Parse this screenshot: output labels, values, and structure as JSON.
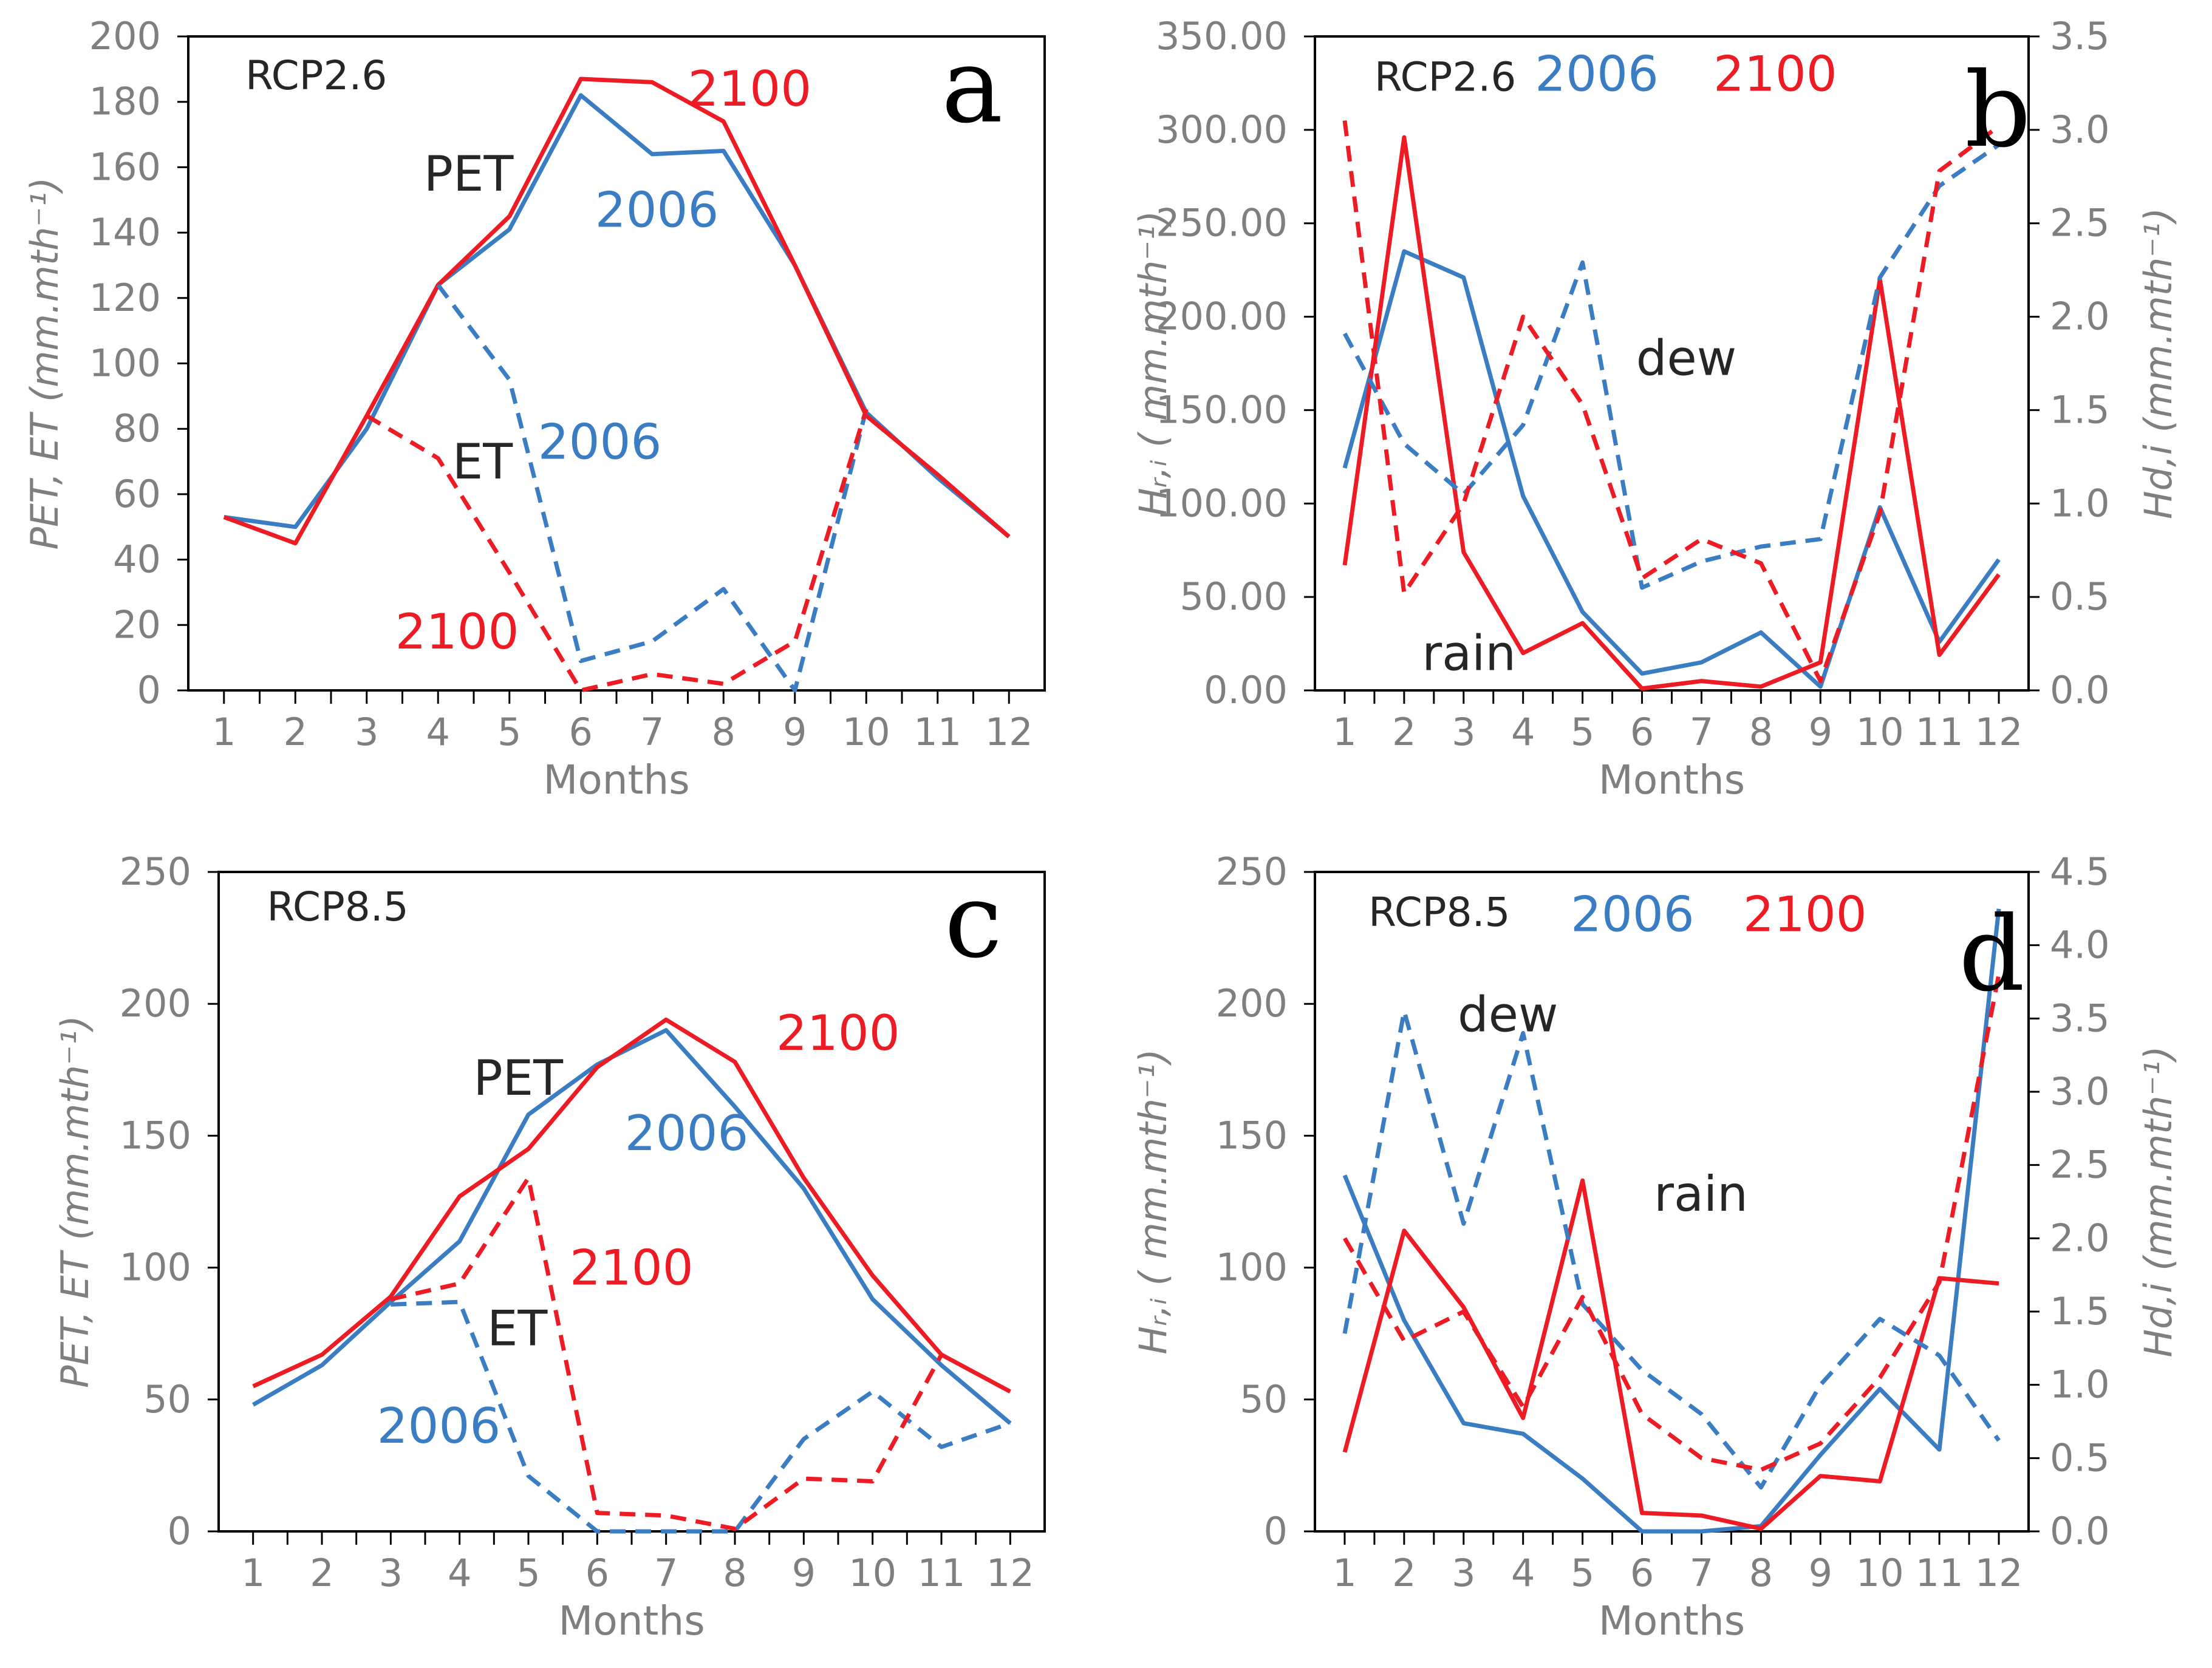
{
  "colors": {
    "blue": "#3a7dc2",
    "red": "#ed1c24",
    "black": "#262626",
    "gray": "#7f7f7f"
  },
  "chart_data": [
    {
      "id": "a",
      "type": "line",
      "panel_letter": "a",
      "xlabel": "Months",
      "ylabel": "PET, ET (mm.mth⁻¹)",
      "x": [
        1,
        2,
        3,
        4,
        5,
        6,
        7,
        8,
        9,
        10,
        11,
        12
      ],
      "xlim": [
        0.5,
        12.5
      ],
      "ylim": [
        0,
        200
      ],
      "yticks": [
        0,
        20,
        40,
        60,
        80,
        100,
        120,
        140,
        160,
        180,
        200
      ],
      "ytick_labels": [
        "0",
        "20",
        "40",
        "60",
        "80",
        "100",
        "120",
        "140",
        "160",
        "180",
        "200"
      ],
      "series": [
        {
          "name": "PET 2006",
          "axis": "left",
          "color": "blue",
          "dash": false,
          "values": [
            53,
            50,
            80,
            124,
            141,
            182,
            164,
            165,
            130,
            85,
            65,
            47
          ]
        },
        {
          "name": "PET 2100",
          "axis": "left",
          "color": "red",
          "dash": false,
          "values": [
            53,
            45,
            84,
            124,
            145,
            187,
            186,
            174,
            130,
            84,
            66,
            47
          ]
        },
        {
          "name": "ET 2006",
          "axis": "left",
          "color": "blue",
          "dash": true,
          "values": [
            null,
            null,
            null,
            124,
            95,
            9,
            15,
            31,
            0,
            86,
            null,
            null
          ]
        },
        {
          "name": "ET 2100",
          "axis": "left",
          "color": "red",
          "dash": true,
          "values": [
            null,
            null,
            84,
            71,
            36,
            0,
            5,
            2,
            15,
            86,
            null,
            null
          ]
        }
      ],
      "annotations": [
        {
          "text": "RCP2.6",
          "color": "black",
          "x": 1.3,
          "y": 189
        },
        {
          "text": "2100",
          "color": "red",
          "x": 7.5,
          "y": 184
        },
        {
          "text": "PET",
          "color": "black",
          "x": 3.8,
          "y": 158
        },
        {
          "text": "2006",
          "color": "blue",
          "x": 6.2,
          "y": 147
        },
        {
          "text": "ET",
          "color": "black",
          "x": 4.2,
          "y": 70
        },
        {
          "text": "2006",
          "color": "blue",
          "x": 5.4,
          "y": 76
        },
        {
          "text": "2100",
          "color": "red",
          "x": 3.4,
          "y": 18
        }
      ]
    },
    {
      "id": "b",
      "type": "line",
      "panel_letter": "b",
      "xlabel": "Months",
      "ylabel": "Hᵣ,ᵢ ( mm.mth⁻¹)",
      "ylabel_right": "Hd,i (mm.mth⁻¹)",
      "x": [
        1,
        2,
        3,
        4,
        5,
        6,
        7,
        8,
        9,
        10,
        11,
        12
      ],
      "xlim": [
        0.5,
        12.5
      ],
      "ylim": [
        0,
        350
      ],
      "ylim_right": [
        0,
        3.5
      ],
      "yticks": [
        0,
        50,
        100,
        150,
        200,
        250,
        300,
        350
      ],
      "ytick_labels": [
        "0.00",
        "50.00",
        "100.00",
        "150.00",
        "200.00",
        "250.00",
        "300.00",
        "350.00"
      ],
      "yticks_right": [
        0,
        0.5,
        1,
        1.5,
        2,
        2.5,
        3,
        3.5
      ],
      "ytick_labels_right": [
        "0.0",
        "0.5",
        "1.0",
        "1.5",
        "2.0",
        "2.5",
        "3.0",
        "3.5"
      ],
      "series": [
        {
          "name": "rain 2006",
          "axis": "left",
          "color": "blue",
          "dash": false,
          "values": [
            119,
            235,
            221,
            104,
            42,
            9,
            15,
            31,
            2,
            98,
            26,
            70
          ]
        },
        {
          "name": "rain 2100",
          "axis": "left",
          "color": "red",
          "dash": false,
          "values": [
            67,
            296,
            74,
            20,
            36,
            1,
            5,
            2,
            15,
            220,
            19,
            62
          ]
        },
        {
          "name": "dew 2006",
          "axis": "right",
          "color": "blue",
          "dash": true,
          "values": [
            1.91,
            1.32,
            1.05,
            1.42,
            2.29,
            0.55,
            0.69,
            0.77,
            0.81,
            2.21,
            2.7,
            2.92
          ]
        },
        {
          "name": "dew 2100",
          "axis": "right",
          "color": "red",
          "dash": true,
          "values": [
            3.05,
            0.52,
            1.0,
            2.0,
            1.53,
            0.6,
            0.81,
            0.68,
            0.05,
            0.95,
            2.78,
            3.02
          ]
        }
      ],
      "annotations": [
        {
          "text": "RCP2.6",
          "color": "black",
          "x": 1.5,
          "y": 330
        },
        {
          "text": "2006",
          "color": "blue",
          "x": 4.2,
          "y": 330
        },
        {
          "text": "2100",
          "color": "red",
          "x": 7.2,
          "y": 330
        },
        {
          "text": "dew",
          "color": "black",
          "x": 5.9,
          "y": 178
        },
        {
          "text": "rain",
          "color": "black",
          "x": 2.3,
          "y": 20
        }
      ]
    },
    {
      "id": "c",
      "type": "line",
      "panel_letter": "c",
      "xlabel": "Months",
      "ylabel": "PET, ET (mm.mth⁻¹)",
      "x": [
        1,
        2,
        3,
        4,
        5,
        6,
        7,
        8,
        9,
        10,
        11,
        12
      ],
      "xlim": [
        0.5,
        12.5
      ],
      "ylim": [
        0,
        250
      ],
      "yticks": [
        0,
        50,
        100,
        150,
        200,
        250
      ],
      "ytick_labels": [
        "0",
        "50",
        "100",
        "150",
        "200",
        "250"
      ],
      "series": [
        {
          "name": "PET 2006",
          "axis": "left",
          "color": "blue",
          "dash": false,
          "values": [
            48,
            63,
            87,
            110,
            158,
            177,
            190,
            161,
            130,
            88,
            63,
            41
          ]
        },
        {
          "name": "PET 2100",
          "axis": "left",
          "color": "red",
          "dash": false,
          "values": [
            55,
            67,
            89,
            127,
            145,
            176,
            194,
            178,
            134,
            97,
            67,
            53
          ]
        },
        {
          "name": "ET 2006",
          "axis": "left",
          "color": "blue",
          "dash": true,
          "values": [
            null,
            null,
            86,
            87,
            21,
            0,
            0,
            0,
            35,
            53,
            32,
            41
          ]
        },
        {
          "name": "ET 2100",
          "axis": "left",
          "color": "red",
          "dash": true,
          "values": [
            null,
            null,
            88,
            94,
            134,
            7,
            6,
            1,
            20,
            19,
            67,
            null
          ]
        }
      ],
      "annotations": [
        {
          "text": "RCP8.5",
          "color": "black",
          "x": 1.2,
          "y": 238
        },
        {
          "text": "2100",
          "color": "red",
          "x": 8.6,
          "y": 189
        },
        {
          "text": "PET",
          "color": "black",
          "x": 4.2,
          "y": 172
        },
        {
          "text": "2006",
          "color": "blue",
          "x": 6.4,
          "y": 151
        },
        {
          "text": "2100",
          "color": "red",
          "x": 5.6,
          "y": 100
        },
        {
          "text": "ET",
          "color": "black",
          "x": 4.4,
          "y": 77
        },
        {
          "text": "2006",
          "color": "blue",
          "x": 2.8,
          "y": 40
        }
      ]
    },
    {
      "id": "d",
      "type": "line",
      "panel_letter": "d",
      "xlabel": "Months",
      "ylabel": "Hᵣ,ᵢ ( mm.mth⁻¹)",
      "ylabel_right": "Hd,i (mm.mth⁻¹)",
      "x": [
        1,
        2,
        3,
        4,
        5,
        6,
        7,
        8,
        9,
        10,
        11,
        12
      ],
      "xlim": [
        0.5,
        12.5
      ],
      "ylim": [
        0,
        250
      ],
      "ylim_right": [
        0,
        4.5
      ],
      "yticks": [
        0,
        50,
        100,
        150,
        200,
        250
      ],
      "ytick_labels": [
        "0",
        "50",
        "100",
        "150",
        "200",
        "250"
      ],
      "yticks_right": [
        0,
        0.5,
        1,
        1.5,
        2,
        2.5,
        3,
        3.5,
        4,
        4.5
      ],
      "ytick_labels_right": [
        "0.0",
        "0.5",
        "1.0",
        "1.5",
        "2.0",
        "2.5",
        "3.0",
        "3.5",
        "4.0",
        "4.5"
      ],
      "series": [
        {
          "name": "rain 2006",
          "axis": "left",
          "color": "blue",
          "dash": false,
          "values": [
            135,
            80,
            41,
            37,
            20,
            0,
            0,
            2,
            29,
            54,
            31,
            236
          ]
        },
        {
          "name": "rain 2100",
          "axis": "left",
          "color": "red",
          "dash": false,
          "values": [
            30,
            114,
            85,
            43,
            133,
            7,
            6,
            1,
            21,
            19,
            96,
            94
          ]
        },
        {
          "name": "dew 2006",
          "axis": "right",
          "color": "blue",
          "dash": true,
          "values": [
            1.35,
            3.55,
            2.1,
            3.4,
            1.55,
            1.1,
            0.8,
            0.3,
            1.0,
            1.45,
            1.2,
            0.62
          ]
        },
        {
          "name": "dew 2100",
          "axis": "right",
          "color": "red",
          "dash": true,
          "values": [
            2.0,
            1.3,
            1.5,
            0.85,
            1.6,
            0.8,
            0.5,
            0.42,
            0.6,
            1.05,
            1.7,
            3.8
          ]
        }
      ],
      "annotations": [
        {
          "text": "RCP8.5",
          "color": "black",
          "x": 1.4,
          "y": 236
        },
        {
          "text": "2006",
          "color": "blue",
          "x": 4.8,
          "y": 234
        },
        {
          "text": "2100",
          "color": "red",
          "x": 7.7,
          "y": 234
        },
        {
          "text": "dew",
          "color": "black",
          "x": 2.9,
          "y": 196
        },
        {
          "text": "rain",
          "color": "black",
          "x": 6.2,
          "y": 128
        }
      ]
    }
  ]
}
